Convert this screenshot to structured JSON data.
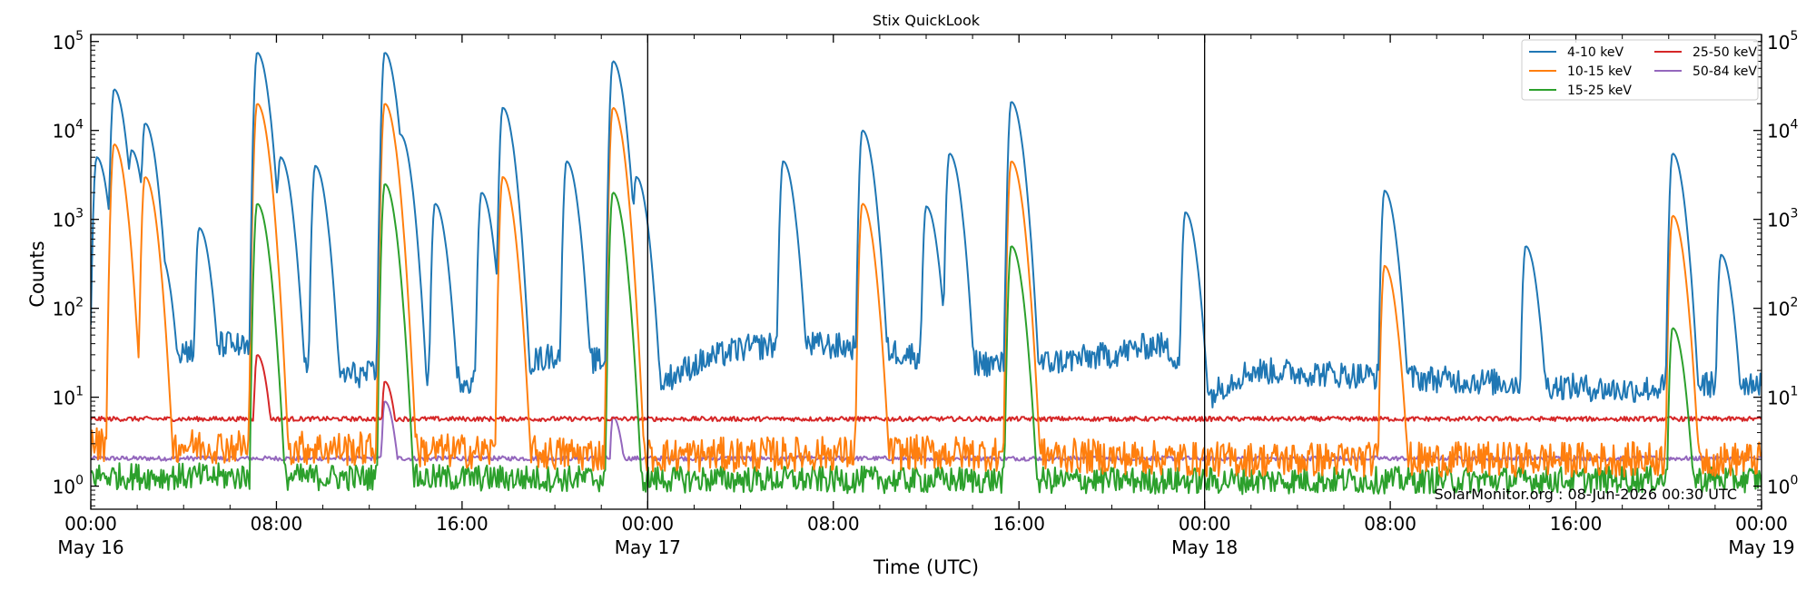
{
  "chart_data": {
    "type": "line",
    "title": "Stix QuickLook",
    "xlabel": "Time (UTC)",
    "ylabel": "Counts",
    "yscale": "log",
    "ylim": [
      0.55,
      120000
    ],
    "xlim": [
      "2026-05-16 00:00",
      "2026-05-19 00:00"
    ],
    "y_ticks": [
      {
        "value": 1,
        "base": "10",
        "exp": "0"
      },
      {
        "value": 10,
        "base": "10",
        "exp": "1"
      },
      {
        "value": 100,
        "base": "10",
        "exp": "2"
      },
      {
        "value": 1000,
        "base": "10",
        "exp": "3"
      },
      {
        "value": 10000,
        "base": "10",
        "exp": "4"
      },
      {
        "value": 100000,
        "base": "10",
        "exp": "5"
      }
    ],
    "x_ticks": [
      {
        "time": "2026-05-16 00:00",
        "label": "00:00",
        "date": "May 16"
      },
      {
        "time": "2026-05-16 08:00",
        "label": "08:00",
        "date": ""
      },
      {
        "time": "2026-05-16 16:00",
        "label": "16:00",
        "date": ""
      },
      {
        "time": "2026-05-17 00:00",
        "label": "00:00",
        "date": "May 17"
      },
      {
        "time": "2026-05-17 08:00",
        "label": "08:00",
        "date": ""
      },
      {
        "time": "2026-05-17 16:00",
        "label": "16:00",
        "date": ""
      },
      {
        "time": "2026-05-18 00:00",
        "label": "00:00",
        "date": "May 18"
      },
      {
        "time": "2026-05-18 08:00",
        "label": "08:00",
        "date": ""
      },
      {
        "time": "2026-05-18 16:00",
        "label": "16:00",
        "date": ""
      },
      {
        "time": "2026-05-19 00:00",
        "label": "00:00",
        "date": "May 19"
      }
    ],
    "day_boundaries": [
      "2026-05-17 00:00",
      "2026-05-18 00:00"
    ],
    "grid": false,
    "legend_placement": "top-right",
    "annotation": "SolarMonitor.org : 08-Jun-2026 00:30 UTC",
    "series": [
      {
        "name": "4-10 keV",
        "color": "#1f77b4",
        "baseline": [
          [
            0,
            20
          ],
          [
            3,
            30
          ],
          [
            6,
            40
          ],
          [
            8,
            25
          ],
          [
            10,
            18
          ],
          [
            14,
            18
          ],
          [
            17,
            15
          ],
          [
            20,
            30
          ],
          [
            22,
            25
          ],
          [
            24,
            11
          ],
          [
            28,
            35
          ],
          [
            30,
            40
          ],
          [
            34,
            35
          ],
          [
            36,
            28
          ],
          [
            40,
            22
          ],
          [
            44,
            30
          ],
          [
            46,
            40
          ],
          [
            48,
            9
          ],
          [
            50,
            20
          ],
          [
            54,
            18
          ],
          [
            60,
            15
          ],
          [
            66,
            12
          ],
          [
            70,
            14
          ],
          [
            72,
            15
          ]
        ],
        "flares": [
          {
            "time": "2026-05-16 00:15",
            "peak": 5000
          },
          {
            "time": "2026-05-16 01:00",
            "peak": 29000
          },
          {
            "time": "2026-05-16 01:45",
            "peak": 6000
          },
          {
            "time": "2026-05-16 02:20",
            "peak": 12000
          },
          {
            "time": "2026-05-16 03:00",
            "peak": 400
          },
          {
            "time": "2026-05-16 04:40",
            "peak": 800
          },
          {
            "time": "2026-05-16 07:10",
            "peak": 75000
          },
          {
            "time": "2026-05-16 08:10",
            "peak": 5000
          },
          {
            "time": "2026-05-16 09:40",
            "peak": 4000
          },
          {
            "time": "2026-05-16 12:40",
            "peak": 75000
          },
          {
            "time": "2026-05-16 13:20",
            "peak": 9000
          },
          {
            "time": "2026-05-16 14:50",
            "peak": 1500
          },
          {
            "time": "2026-05-16 16:50",
            "peak": 2000
          },
          {
            "time": "2026-05-16 17:45",
            "peak": 18000
          },
          {
            "time": "2026-05-16 20:30",
            "peak": 4500
          },
          {
            "time": "2026-05-16 22:30",
            "peak": 60000
          },
          {
            "time": "2026-05-16 23:30",
            "peak": 3000
          },
          {
            "time": "2026-05-17 05:50",
            "peak": 4500
          },
          {
            "time": "2026-05-17 09:15",
            "peak": 10000
          },
          {
            "time": "2026-05-17 12:00",
            "peak": 1400
          },
          {
            "time": "2026-05-17 13:00",
            "peak": 5500
          },
          {
            "time": "2026-05-17 15:40",
            "peak": 21000
          },
          {
            "time": "2026-05-17 23:10",
            "peak": 1200
          },
          {
            "time": "2026-05-18 07:45",
            "peak": 2100
          },
          {
            "time": "2026-05-18 13:50",
            "peak": 500
          },
          {
            "time": "2026-05-18 20:10",
            "peak": 5500
          },
          {
            "time": "2026-05-18 22:15",
            "peak": 400
          }
        ]
      },
      {
        "name": "10-15 keV",
        "color": "#ff7f0e",
        "baseline": [
          [
            0,
            3
          ],
          [
            12,
            2.6
          ],
          [
            24,
            2.2
          ],
          [
            36,
            2.4
          ],
          [
            48,
            2.0
          ],
          [
            60,
            2.0
          ],
          [
            72,
            2.0
          ]
        ],
        "flares": [
          {
            "time": "2026-05-16 01:00",
            "peak": 7000
          },
          {
            "time": "2026-05-16 02:20",
            "peak": 3000
          },
          {
            "time": "2026-05-16 07:10",
            "peak": 20000
          },
          {
            "time": "2026-05-16 12:40",
            "peak": 20000
          },
          {
            "time": "2026-05-16 17:45",
            "peak": 3000
          },
          {
            "time": "2026-05-16 22:30",
            "peak": 18000
          },
          {
            "time": "2026-05-17 09:15",
            "peak": 1500
          },
          {
            "time": "2026-05-17 15:40",
            "peak": 4500
          },
          {
            "time": "2026-05-18 07:45",
            "peak": 300
          },
          {
            "time": "2026-05-18 20:10",
            "peak": 1100
          }
        ]
      },
      {
        "name": "15-25 keV",
        "color": "#2ca02c",
        "baseline": [
          [
            0,
            1.3
          ],
          [
            24,
            1.2
          ],
          [
            48,
            1.15
          ],
          [
            72,
            1.2
          ]
        ],
        "flares": [
          {
            "time": "2026-05-16 07:10",
            "peak": 1500
          },
          {
            "time": "2026-05-16 12:40",
            "peak": 2500
          },
          {
            "time": "2026-05-16 22:30",
            "peak": 2000
          },
          {
            "time": "2026-05-17 15:40",
            "peak": 500
          },
          {
            "time": "2026-05-18 20:10",
            "peak": 60
          }
        ]
      },
      {
        "name": "25-50 keV",
        "color": "#d62728",
        "baseline": [
          [
            0,
            5.7
          ],
          [
            72,
            5.7
          ]
        ],
        "flares": [
          {
            "time": "2026-05-16 07:10",
            "peak": 30
          },
          {
            "time": "2026-05-16 12:40",
            "peak": 15
          }
        ]
      },
      {
        "name": "50-84 keV",
        "color": "#9467bd",
        "baseline": [
          [
            0,
            2.05
          ],
          [
            72,
            2.05
          ]
        ],
        "flares": [
          {
            "time": "2026-05-16 12:40",
            "peak": 9
          },
          {
            "time": "2026-05-16 22:30",
            "peak": 6
          }
        ]
      }
    ]
  }
}
